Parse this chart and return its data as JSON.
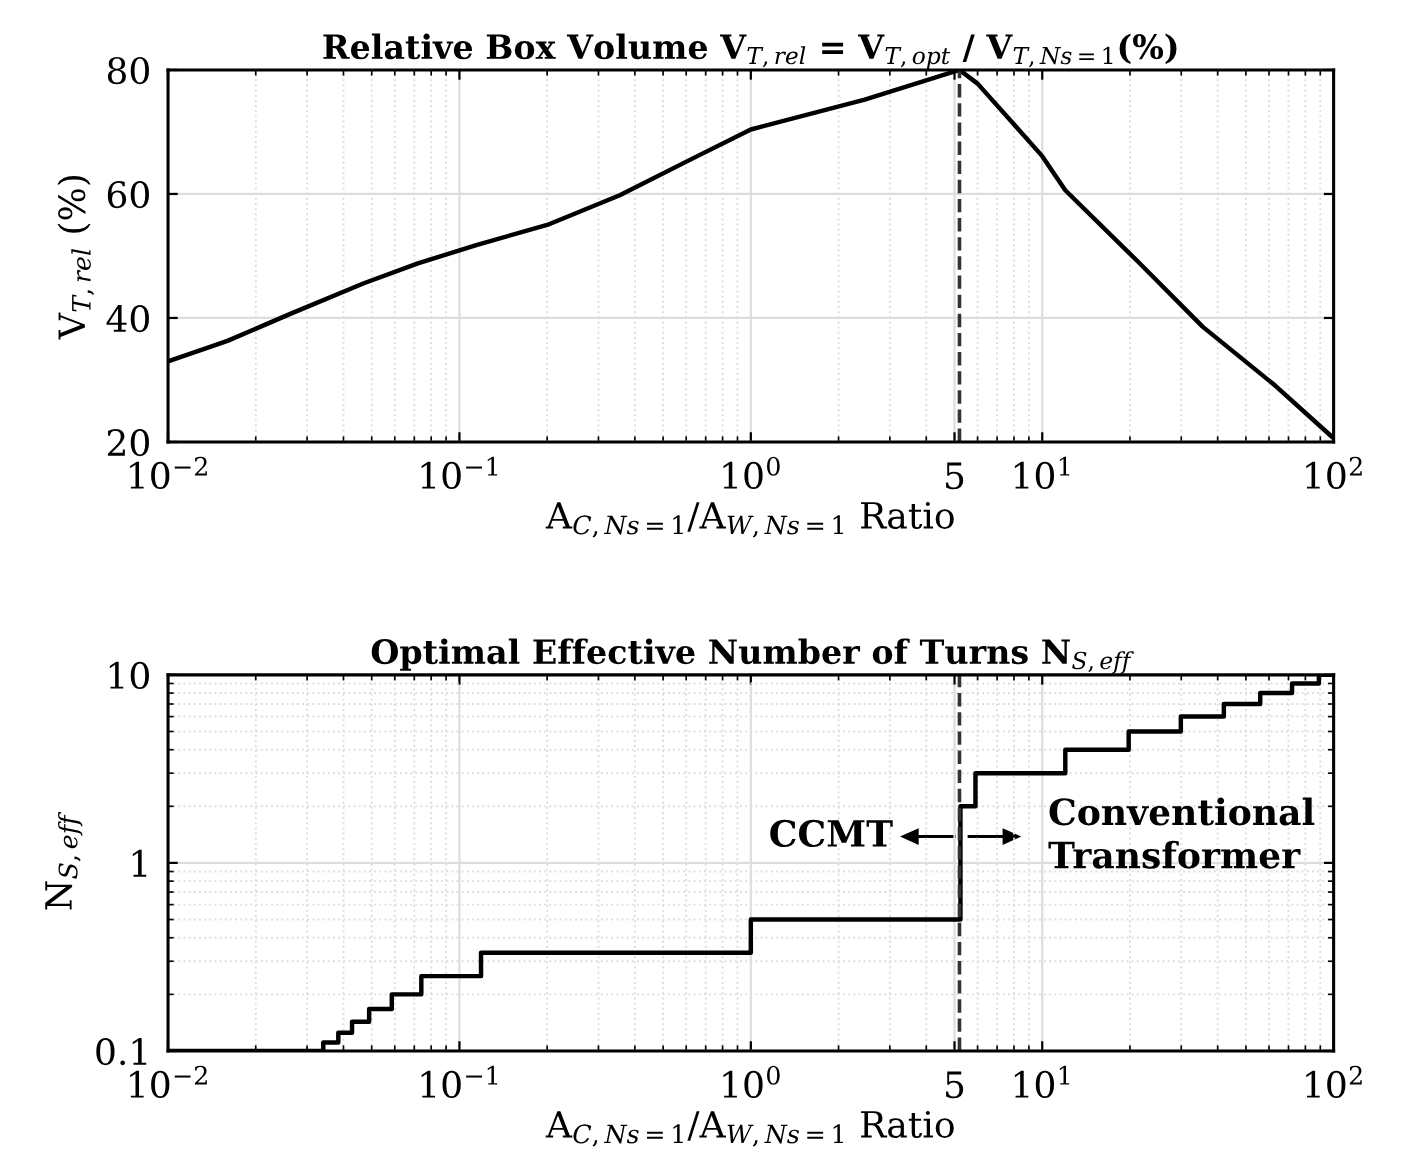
{
  "chart_data": [
    {
      "type": "line",
      "title": "Relative Box Volume V$_{T,rel}$ = V$_{T,opt}$ / V$_{T,Ns=1}$(%)",
      "xlabel": "A$_{C,Ns=1}$/A$_{W,Ns=1}$ Ratio",
      "ylabel": "V$_{T,rel}$ (%)",
      "x": [
        0.01,
        0.016,
        0.0264,
        0.047,
        0.072,
        0.115,
        0.2,
        0.355,
        0.63,
        1.0,
        2.46,
        5.2,
        6.0,
        10,
        12,
        21.5,
        35.5,
        63,
        100
      ],
      "series": [
        {
          "color": "#000000",
          "values": [
            33.0,
            36.3,
            40.7,
            45.6,
            48.8,
            51.8,
            55.0,
            59.8,
            65.7,
            70.4,
            75.2,
            80,
            77.8,
            66.1,
            60.6,
            48.9,
            38.6,
            29.1,
            20.6
          ]
        }
      ],
      "xlim": [
        0.01,
        100
      ],
      "ylim": [
        20,
        80
      ],
      "xticks": [
        {
          "value": 0.01,
          "label": "10$^{−2}$"
        },
        {
          "value": 0.1,
          "label": "10$^{−1}$"
        },
        {
          "value": 1,
          "label": "10$^{0}$"
        },
        5,
        {
          "value": 10,
          "label": "10$^{1}$"
        },
        {
          "value": 100,
          "label": "10$^{2}$"
        }
      ],
      "yticks": [
        20,
        40,
        60,
        80
      ],
      "log": "x",
      "grid": true,
      "ref_lines": [
        {
          "axis": "x",
          "value": 5.2,
          "color": "#333333",
          "line_style": "dashed"
        }
      ]
    },
    {
      "type": "step",
      "title": "Optimal Effective Number of Turns N$_{S,eff}$",
      "xlabel": "A$_{C,Ns=1}$/A$_{W,Ns=1}$ Ratio",
      "ylabel": "N$_{S,eff}$",
      "x": [
        0.01,
        0.0341,
        0.0384,
        0.0428,
        0.049,
        0.0586,
        0.074,
        0.1186,
        1.0,
        5.24,
        5.9,
        12,
        19.8,
        29.9,
        42,
        56,
        72,
        89,
        100
      ],
      "series": [
        {
          "color": "#000000",
          "values": [
            0.1,
            0.111,
            0.125,
            0.143,
            0.167,
            0.2,
            0.25,
            0.333,
            0.5,
            2,
            3,
            4,
            5,
            6,
            7,
            8,
            9,
            10,
            10
          ]
        }
      ],
      "xlim": [
        0.01,
        100
      ],
      "ylim": [
        0.1,
        10
      ],
      "xticks": [
        {
          "value": 0.01,
          "label": "10$^{−2}$"
        },
        {
          "value": 0.1,
          "label": "10$^{−1}$"
        },
        {
          "value": 1,
          "label": "10$^{0}$"
        },
        5,
        {
          "value": 10,
          "label": "10$^{1}$"
        },
        {
          "value": 100,
          "label": "10$^{2}$"
        }
      ],
      "yticks": [
        0.1,
        1,
        10
      ],
      "log": "xy",
      "grid": true,
      "ref_lines": [
        {
          "axis": "x",
          "value": 5.2,
          "color": "#333333",
          "line_style": "dashed"
        }
      ],
      "annotations": [
        "CCMT",
        "Conventional\nTransformer"
      ]
    }
  ]
}
